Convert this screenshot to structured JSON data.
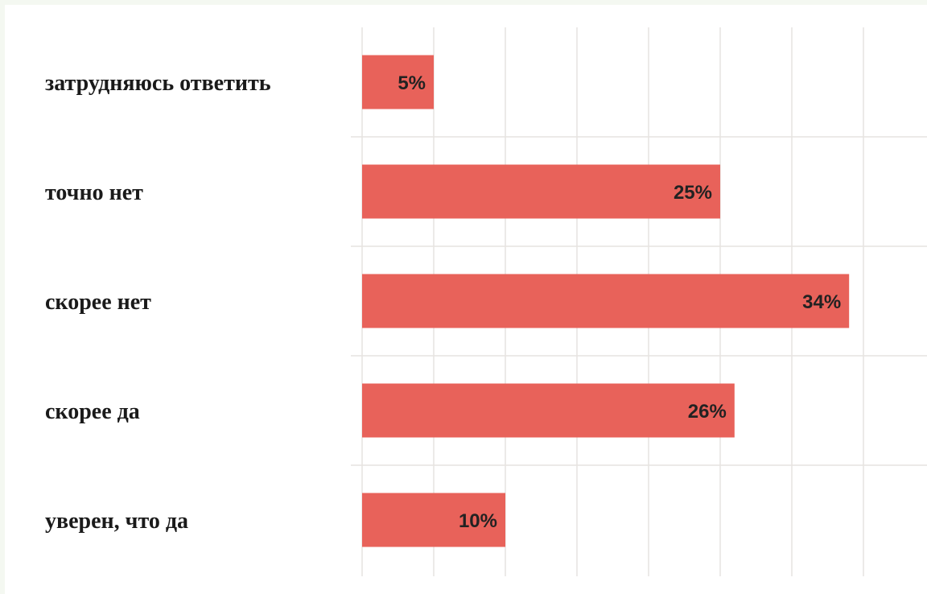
{
  "chart_data": {
    "type": "bar",
    "orientation": "horizontal",
    "categories": [
      "затрудняюсь ответить",
      "точно нет",
      "скорее нет",
      "скорее да",
      "уверен, что да"
    ],
    "values": [
      5,
      25,
      34,
      26,
      10
    ],
    "value_labels": [
      "5%",
      "25%",
      "34%",
      "26%",
      "10%"
    ],
    "xlim": [
      0,
      40
    ],
    "x_grid_step": 5,
    "grid": true,
    "bar_color": "#e8625a",
    "title": "",
    "xlabel": "",
    "ylabel": ""
  }
}
